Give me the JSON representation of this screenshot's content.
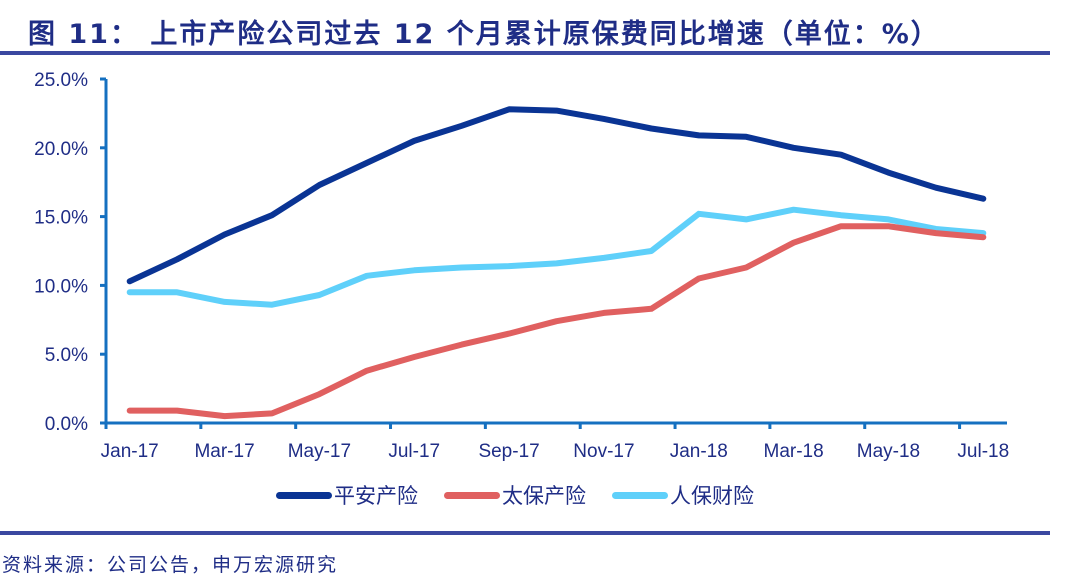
{
  "header": {
    "title": "图 11：  上市产险公司过去 12 个月累计原保费同比增速（单位：%）"
  },
  "footer": {
    "source": "资料来源：公司公告，申万宏源研究"
  },
  "colors": {
    "rule": "#3a48a0",
    "axis": "#1570c0",
    "text": "#1f2d86"
  },
  "chart_data": {
    "type": "line",
    "title": "上市产险公司过去12个月累计原保费同比增速（单位：%）",
    "xlabel": "",
    "ylabel": "",
    "ylim": [
      0,
      25
    ],
    "grid": false,
    "legend_position": "bottom",
    "y_ticks": [
      "0.0%",
      "5.0%",
      "10.0%",
      "15.0%",
      "20.0%",
      "25.0%"
    ],
    "x_tick_labels": [
      "Jan-17",
      "Mar-17",
      "May-17",
      "Jul-17",
      "Sep-17",
      "Nov-17",
      "Jan-18",
      "Mar-18",
      "May-18",
      "Jul-18"
    ],
    "x": [
      "Jan-17",
      "Feb-17",
      "Mar-17",
      "Apr-17",
      "May-17",
      "Jun-17",
      "Jul-17",
      "Aug-17",
      "Sep-17",
      "Oct-17",
      "Nov-17",
      "Dec-17",
      "Jan-18",
      "Feb-18",
      "Mar-18",
      "Apr-18",
      "May-18",
      "Jun-18",
      "Jul-18"
    ],
    "series": [
      {
        "name": "平安产险",
        "color": "#0a3494",
        "values": [
          10.3,
          11.9,
          13.7,
          15.1,
          17.3,
          18.9,
          20.5,
          21.6,
          22.8,
          22.7,
          22.1,
          21.4,
          20.9,
          20.8,
          20.0,
          19.5,
          18.2,
          17.1,
          16.3
        ]
      },
      {
        "name": "太保产险",
        "color": "#e06060",
        "values": [
          0.9,
          0.9,
          0.5,
          0.7,
          2.1,
          3.8,
          4.8,
          5.7,
          6.5,
          7.4,
          8.0,
          8.3,
          10.5,
          11.3,
          13.1,
          14.3,
          14.3,
          13.8,
          13.5
        ]
      },
      {
        "name": "人保财险",
        "color": "#5fd0fa",
        "values": [
          9.5,
          9.5,
          8.8,
          8.6,
          9.3,
          10.7,
          11.1,
          11.3,
          11.4,
          11.6,
          12.0,
          12.5,
          15.2,
          14.8,
          15.5,
          15.1,
          14.8,
          14.1,
          13.8
        ]
      }
    ]
  }
}
